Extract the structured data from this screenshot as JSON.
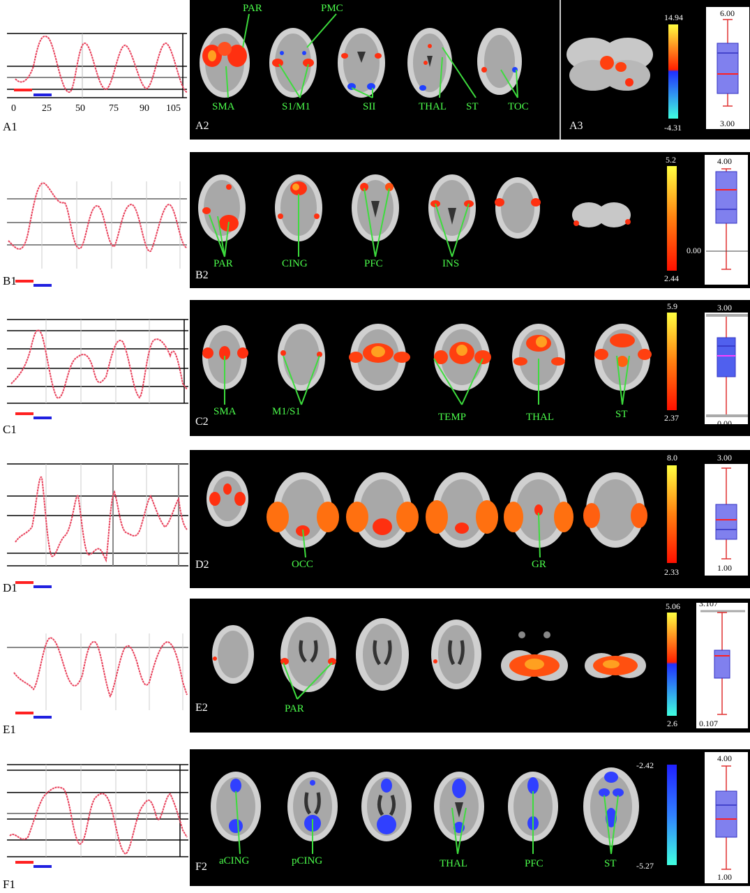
{
  "rows": [
    {
      "id": "A",
      "trace_label": "A1",
      "panel_label": "A2",
      "panel3_label": "A3",
      "x_ticks": [
        "0",
        "25",
        "50",
        "75",
        "90",
        "105"
      ],
      "regions": [
        "PAR",
        "PMC",
        "SMA",
        "S1/M1",
        "SII",
        "THAL",
        "ST",
        "TOC"
      ],
      "colorbar": {
        "max": "14.94",
        "min": "-4.31",
        "type": "bipolar"
      },
      "box": {
        "max": "6.00",
        "min": "3.00"
      }
    },
    {
      "id": "B",
      "trace_label": "B1",
      "panel_label": "B2",
      "regions": [
        "PAR",
        "CING",
        "PFC",
        "INS"
      ],
      "colorbar": {
        "max": "5.2",
        "min": "2.44",
        "type": "positive"
      },
      "box": {
        "max": "4.00",
        "zero": "0.00"
      }
    },
    {
      "id": "C",
      "trace_label": "C1",
      "panel_label": "C2",
      "regions": [
        "SMA",
        "M1/S1",
        "TEMP",
        "THAL",
        "ST"
      ],
      "colorbar": {
        "max": "5.9",
        "min": "2.37",
        "type": "positive"
      },
      "box": {
        "max": "3.00",
        "min": "0.00"
      }
    },
    {
      "id": "D",
      "trace_label": "D1",
      "panel_label": "D2",
      "regions": [
        "OCC",
        "GR"
      ],
      "colorbar": {
        "max": "8.0",
        "min": "2.33",
        "type": "positive"
      },
      "box": {
        "max": "3.00",
        "min": "1.00"
      }
    },
    {
      "id": "E",
      "trace_label": "E1",
      "panel_label": "E2",
      "regions": [
        "PAR"
      ],
      "colorbar": {
        "max": "5.06",
        "min": "2.6",
        "type": "bipolar"
      },
      "box": {
        "max": "3.107",
        "min": "0.107"
      }
    },
    {
      "id": "F",
      "trace_label": "F1",
      "panel_label": "F2",
      "regions": [
        "aCING",
        "pCING",
        "THAL",
        "PFC",
        "ST"
      ],
      "colorbar": {
        "max": "-2.42",
        "min": "-5.27",
        "type": "negative"
      },
      "box": {
        "max": "4.00",
        "min": "1.00"
      }
    }
  ],
  "colors": {
    "trace": "#e8405a",
    "bar_red": "#ff2020",
    "bar_blue": "#2020e0",
    "region_label": "#4cff4c",
    "box_fill": "#8080ee",
    "box_line": "#ff2020"
  }
}
